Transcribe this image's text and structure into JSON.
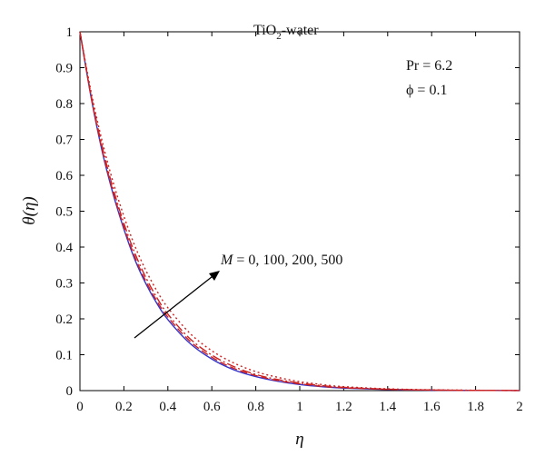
{
  "chart_data": {
    "type": "line",
    "xlim": [
      0,
      2
    ],
    "ylim": [
      0,
      1
    ],
    "xticks": [
      "0",
      "0.2",
      "0.4",
      "0.6",
      "0.8",
      "1",
      "1.2",
      "1.4",
      "1.6",
      "1.8",
      "2"
    ],
    "yticks": [
      "0",
      "0.1",
      "0.2",
      "0.3",
      "0.4",
      "0.5",
      "0.6",
      "0.7",
      "0.8",
      "0.9",
      "1"
    ],
    "xlabel": "η",
    "ylabel": "θ(η)",
    "grid": false,
    "annotations": {
      "fluid_main": "TiO",
      "fluid_sub": "2",
      "fluid_rest": "-water",
      "pr": "Pr = 6.2",
      "phi": "ϕ = 0.1",
      "arrow_var": "M",
      "arrow_values": " = 0, 100, 200, 500"
    },
    "series": [
      {
        "color": "#3333cc",
        "dash": "none",
        "x": [
          0,
          0.05,
          0.1,
          0.15,
          0.2,
          0.25,
          0.3,
          0.35,
          0.4,
          0.5,
          0.6,
          0.7,
          0.8,
          0.9,
          1.0,
          1.1,
          1.2,
          1.4,
          1.6,
          1.8,
          2.0
        ],
        "y": [
          1.0,
          0.82,
          0.67,
          0.55,
          0.45,
          0.365,
          0.298,
          0.243,
          0.198,
          0.132,
          0.088,
          0.058,
          0.039,
          0.026,
          0.017,
          0.011,
          0.007,
          0.003,
          0.0012,
          0.0005,
          0.0002
        ]
      },
      {
        "color": "#cc2222",
        "dash": "8,4",
        "x": [
          0,
          0.05,
          0.1,
          0.15,
          0.2,
          0.25,
          0.3,
          0.35,
          0.4,
          0.5,
          0.6,
          0.7,
          0.8,
          0.9,
          1.0,
          1.1,
          1.2,
          1.4,
          1.6,
          1.8,
          2.0
        ],
        "y": [
          1.0,
          0.822,
          0.675,
          0.556,
          0.456,
          0.372,
          0.305,
          0.25,
          0.205,
          0.138,
          0.093,
          0.062,
          0.042,
          0.028,
          0.019,
          0.012,
          0.008,
          0.0035,
          0.0015,
          0.0006,
          0.0002
        ]
      },
      {
        "color": "#cc2222",
        "dash": "10,3,2,3",
        "x": [
          0,
          0.05,
          0.1,
          0.15,
          0.2,
          0.25,
          0.3,
          0.35,
          0.4,
          0.5,
          0.6,
          0.7,
          0.8,
          0.9,
          1.0,
          1.1,
          1.2,
          1.4,
          1.6,
          1.8,
          2.0
        ],
        "y": [
          1.0,
          0.826,
          0.683,
          0.565,
          0.466,
          0.383,
          0.315,
          0.259,
          0.213,
          0.145,
          0.099,
          0.067,
          0.045,
          0.031,
          0.021,
          0.014,
          0.009,
          0.004,
          0.0017,
          0.0007,
          0.0003
        ]
      },
      {
        "color": "#cc2222",
        "dash": "2,3",
        "x": [
          0,
          0.05,
          0.1,
          0.15,
          0.2,
          0.25,
          0.3,
          0.35,
          0.4,
          0.5,
          0.6,
          0.7,
          0.8,
          0.9,
          1.0,
          1.1,
          1.2,
          1.4,
          1.6,
          1.8,
          2.0
        ],
        "y": [
          1.0,
          0.835,
          0.698,
          0.583,
          0.486,
          0.403,
          0.335,
          0.278,
          0.231,
          0.16,
          0.111,
          0.077,
          0.053,
          0.037,
          0.025,
          0.017,
          0.011,
          0.005,
          0.0022,
          0.001,
          0.0004
        ]
      }
    ]
  }
}
